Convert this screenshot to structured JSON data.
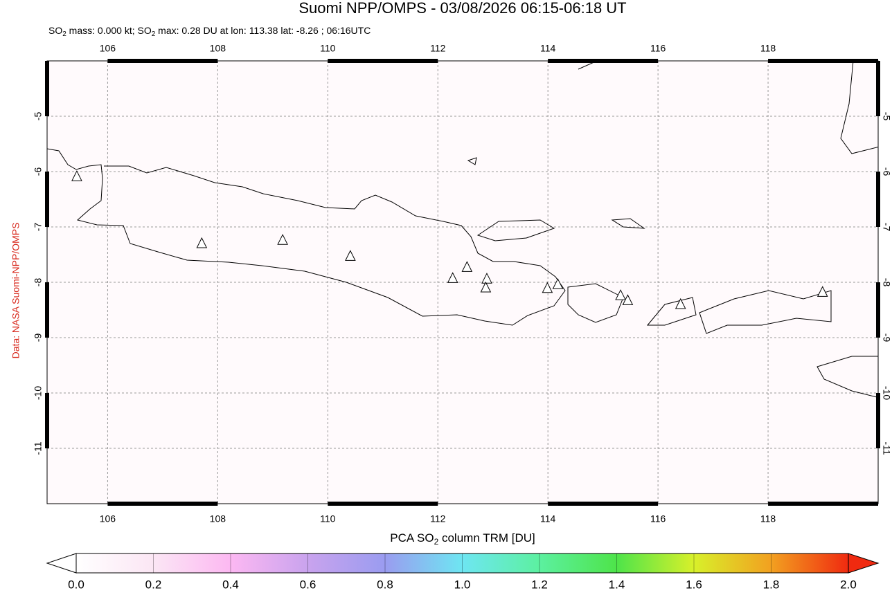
{
  "chart_data": {
    "type": "map",
    "title": "Suomi NPP/OMPS - 03/08/2026 06:15-06:18 UT",
    "subtitle_parts": [
      "SO",
      "2",
      " mass: 0.000 kt; SO",
      "2",
      " max: 0.28 DU at lon: 113.38 lat: -8.26 ; 06:16UTC"
    ],
    "source": "Data: NASA Suomi-NPP/OMPS",
    "xlim": [
      104.9,
      120.0
    ],
    "ylim": [
      -12,
      -4
    ],
    "xticks": [
      106,
      108,
      110,
      112,
      114,
      116,
      118
    ],
    "yticks": [
      -5,
      -6,
      -7,
      -8,
      -9,
      -10,
      -11
    ],
    "grid": true,
    "volcanoes": {
      "lon": [
        105.44,
        107.71,
        109.18,
        110.41,
        112.27,
        112.53,
        112.89,
        112.87,
        113.99,
        114.18,
        115.32,
        115.45,
        116.41,
        118.99
      ],
      "lat": [
        -6.09,
        -7.3,
        -7.24,
        -7.53,
        -7.93,
        -7.73,
        -7.94,
        -8.1,
        -8.11,
        -8.04,
        -8.24,
        -8.33,
        -8.4,
        -8.18
      ]
    },
    "colorbar": {
      "label_parts": [
        "PCA SO",
        "2",
        " column TRM [DU]"
      ],
      "lim": [
        0,
        2
      ],
      "ticks": [
        {
          "value": 0,
          "label": "0.0"
        },
        0.2,
        0.4,
        0.6,
        0.8,
        {
          "value": 1,
          "label": "1.0"
        },
        1.2,
        1.4,
        1.6,
        1.8,
        {
          "value": 2,
          "label": "2.0"
        }
      ]
    }
  }
}
